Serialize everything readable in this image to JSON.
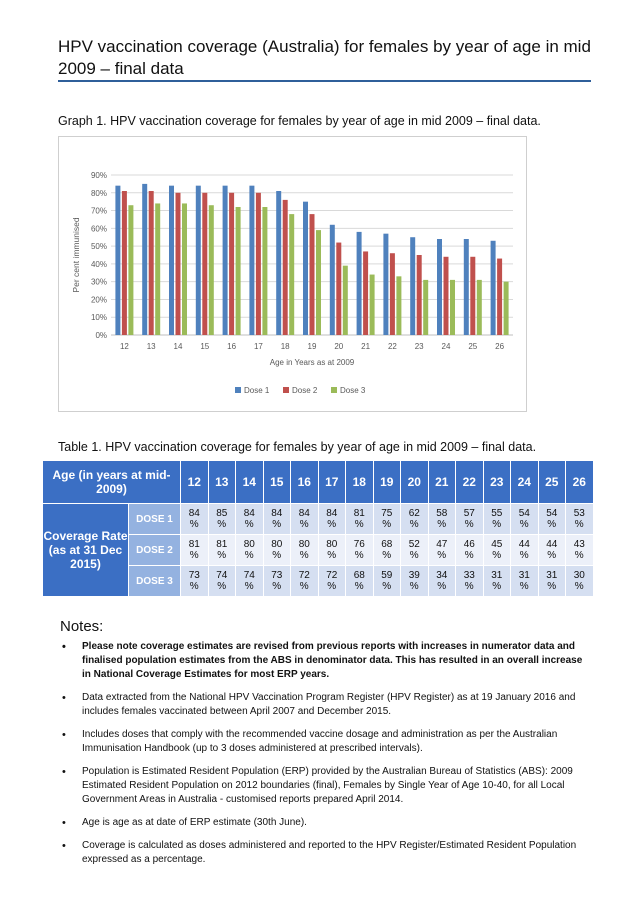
{
  "page": {
    "title": "HPV vaccination coverage (Australia) for females by year of age in mid 2009 – final data",
    "graph_caption": "Graph 1. HPV vaccination coverage for females by year of age in mid 2009 – final data.",
    "table_caption": "Table 1. HPV vaccination coverage for females by year of age in mid 2009 – final data."
  },
  "chart_data": {
    "type": "bar",
    "xlabel": "Age in Years as at 2009",
    "ylabel": "Per cent immunised",
    "ylim": [
      0,
      90
    ],
    "yticks": [
      "0%",
      "10%",
      "20%",
      "30%",
      "40%",
      "50%",
      "60%",
      "70%",
      "80%",
      "90%"
    ],
    "categories": [
      "12",
      "13",
      "14",
      "15",
      "16",
      "17",
      "18",
      "19",
      "20",
      "21",
      "22",
      "23",
      "24",
      "25",
      "26"
    ],
    "series": [
      {
        "name": "Dose 1",
        "color": "#4f81bd",
        "values": [
          84,
          85,
          84,
          84,
          84,
          84,
          81,
          75,
          62,
          58,
          57,
          55,
          54,
          54,
          53
        ]
      },
      {
        "name": "Dose 2",
        "color": "#c0504d",
        "values": [
          81,
          81,
          80,
          80,
          80,
          80,
          76,
          68,
          52,
          47,
          46,
          45,
          44,
          44,
          43
        ]
      },
      {
        "name": "Dose 3",
        "color": "#9bbb59",
        "values": [
          73,
          74,
          74,
          73,
          72,
          72,
          68,
          59,
          39,
          34,
          33,
          31,
          31,
          31,
          30
        ]
      }
    ],
    "grid": true,
    "legend": "bottom"
  },
  "table": {
    "age_header": "Age (in years at mid-2009)",
    "years": [
      "12",
      "13",
      "14",
      "15",
      "16",
      "17",
      "18",
      "19",
      "20",
      "21",
      "22",
      "23",
      "24",
      "25",
      "26"
    ],
    "row_group_label": "Coverage Rate (as at 31 Dec 2015)",
    "rows": [
      {
        "label": "DOSE 1",
        "values": [
          "84",
          "85",
          "84",
          "84",
          "84",
          "84",
          "81",
          "75",
          "62",
          "58",
          "57",
          "55",
          "54",
          "54",
          "53"
        ]
      },
      {
        "label": "DOSE 2",
        "values": [
          "81",
          "81",
          "80",
          "80",
          "80",
          "80",
          "76",
          "68",
          "52",
          "47",
          "46",
          "45",
          "44",
          "44",
          "43"
        ]
      },
      {
        "label": "DOSE 3",
        "values": [
          "73",
          "74",
          "74",
          "73",
          "72",
          "72",
          "68",
          "59",
          "39",
          "34",
          "33",
          "31",
          "31",
          "31",
          "30"
        ]
      }
    ],
    "unit": "%"
  },
  "notes": {
    "heading": "Notes:",
    "items": [
      "Please note coverage estimates are revised from previous reports with increases in numerator data and finalised population estimates from the ABS in denominator data. This has resulted in an overall increase in National Coverage Estimates for most ERP years.",
      "Data extracted from the National HPV Vaccination Program Register (HPV Register) as at 19 January 2016 and includes females vaccinated between April 2007 and December 2015.",
      "Includes doses that comply with the recommended vaccine dosage and administration as per the Australian Immunisation Handbook (up to 3 doses administered at prescribed intervals).",
      "Population is Estimated Resident Population (ERP) provided by the Australian Bureau of Statistics (ABS): 2009 Estimated Resident Population on 2012 boundaries (final), Females by Single Year of Age 10-40, for all Local Government Areas in Australia - customised reports prepared April 2014.",
      "Age is age as at date of ERP estimate (30th June).",
      "Coverage is calculated as doses administered and reported to the HPV Register/Estimated Resident Population expressed as a percentage."
    ]
  }
}
